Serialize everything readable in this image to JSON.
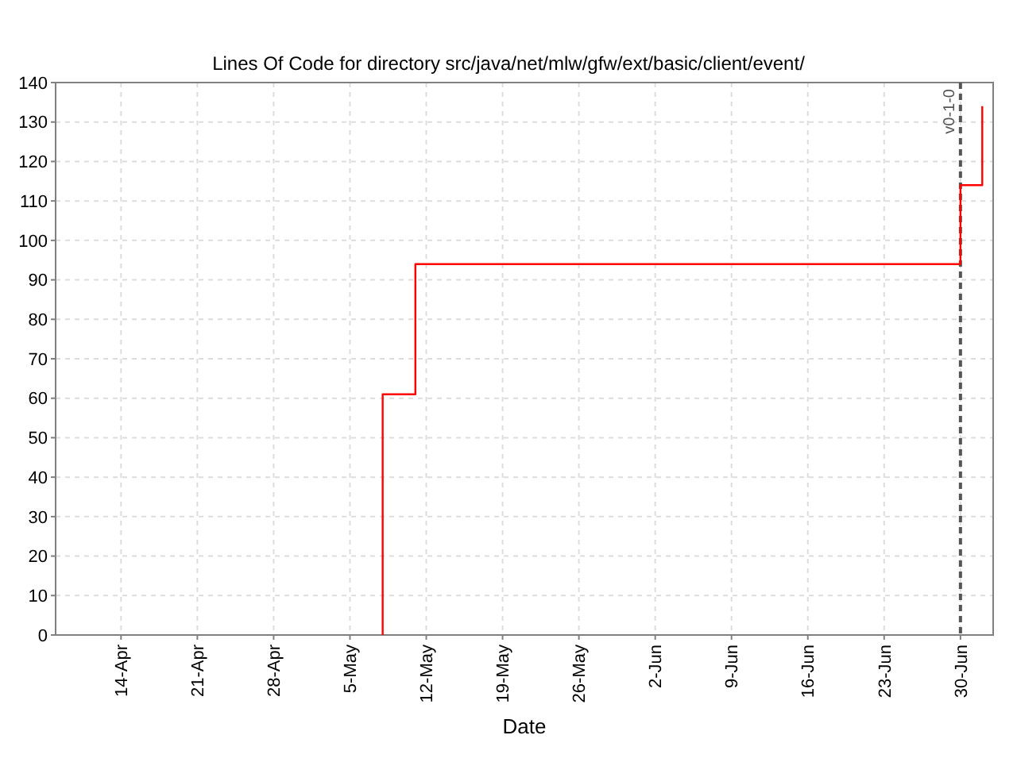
{
  "chart_data": {
    "type": "step",
    "subtitle": "Lines Of Code for directory src/java/net/mlw/gfw/ext/basic/client/event/",
    "xlabel": "Date",
    "series": [
      {
        "color": "#ff0000",
        "x": [
          "--05-08",
          "--05-08",
          "--05-11",
          "--06-30",
          "--07-02"
        ],
        "values": [
          0,
          61,
          94,
          114,
          134
        ]
      }
    ],
    "xlim": [
      "--04-08",
      "--07-03"
    ],
    "xticks": [
      {
        "value": "--04-14",
        "label": "14-Apr"
      },
      {
        "value": "--04-21",
        "label": "21-Apr"
      },
      {
        "value": "--04-28",
        "label": "28-Apr"
      },
      {
        "value": "--05-05",
        "label": "5-May"
      },
      {
        "value": "--05-12",
        "label": "12-May"
      },
      {
        "value": "--05-19",
        "label": "19-May"
      },
      {
        "value": "--05-26",
        "label": "26-May"
      },
      {
        "value": "--06-02",
        "label": "2-Jun"
      },
      {
        "value": "--06-09",
        "label": "9-Jun"
      },
      {
        "value": "--06-16",
        "label": "16-Jun"
      },
      {
        "value": "--06-23",
        "label": "23-Jun"
      },
      {
        "value": "--06-30",
        "label": "30-Jun"
      }
    ],
    "ylim": [
      0,
      140
    ],
    "yticks": [
      0,
      10,
      20,
      30,
      40,
      50,
      60,
      70,
      80,
      90,
      100,
      110,
      120,
      130,
      140
    ],
    "ref_lines": [
      {
        "axis": "x",
        "value": "--06-30",
        "label": "v0-1-0",
        "color": "#555555",
        "line_style": "dashed"
      }
    ],
    "grid": true
  }
}
